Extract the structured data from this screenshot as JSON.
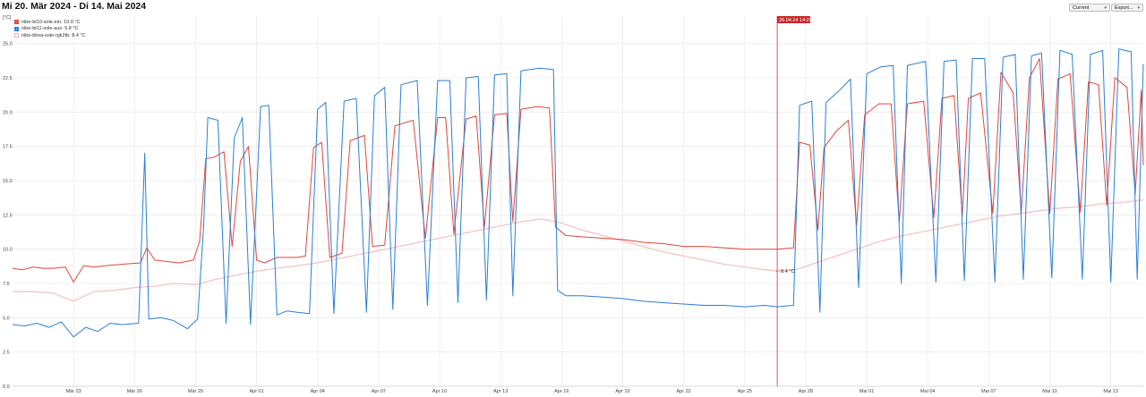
{
  "page": {
    "title": "Mi 20. Mär 2024 - Di 14. Mai 2024",
    "controls": {
      "current_label": "Current",
      "export_label": "Export..."
    }
  },
  "colors": {
    "sole_ein": "#e0463a",
    "sole_aus": "#2a7fd4",
    "rgk2tb": "#f3c4c4",
    "marker": "#e0463a",
    "grid": "#ececec"
  },
  "chart_data": {
    "type": "line",
    "ylabel": "[°C]",
    "ylim": [
      0,
      27
    ],
    "y_ticks": [
      "0.0",
      "2.5",
      "5.0",
      "7.5",
      "10.0",
      "12.5",
      "15.0",
      "17.5",
      "20.0",
      "22.5",
      "25.0"
    ],
    "x_ticks": [
      {
        "label": "Mär 23",
        "day": 3
      },
      {
        "label": "Mär 26",
        "day": 6
      },
      {
        "label": "Mär 29",
        "day": 9
      },
      {
        "label": "Apr 01",
        "day": 12
      },
      {
        "label": "Apr 04",
        "day": 15
      },
      {
        "label": "Apr 07",
        "day": 18
      },
      {
        "label": "Apr 10",
        "day": 21
      },
      {
        "label": "Apr 13",
        "day": 24
      },
      {
        "label": "Apr 16",
        "day": 27
      },
      {
        "label": "Apr 19",
        "day": 30
      },
      {
        "label": "Apr 22",
        "day": 33
      },
      {
        "label": "Apr 25",
        "day": 36
      },
      {
        "label": "Apr 28",
        "day": 39
      },
      {
        "label": "Mai 01",
        "day": 42
      },
      {
        "label": "Mai 04",
        "day": 45
      },
      {
        "label": "Mai 07",
        "day": 48
      },
      {
        "label": "Mai 10",
        "day": 51
      },
      {
        "label": "Mai 13",
        "day": 54
      }
    ],
    "xlim_days": [
      0,
      55.6
    ],
    "marker": {
      "label": "26.04.24 14:29",
      "day": 37.6,
      "value_label": "8.4 °C",
      "value": 8.4
    },
    "series": [
      {
        "name": "nibe-bt10-sole-ein",
        "legend": "nibe-bt10-sole-ein: 10.0 °C",
        "color": "#e0463a",
        "points": [
          [
            0,
            8.6
          ],
          [
            0.5,
            8.5
          ],
          [
            1,
            8.7
          ],
          [
            1.5,
            8.6
          ],
          [
            2,
            8.6
          ],
          [
            2.6,
            8.7
          ],
          [
            3,
            7.6
          ],
          [
            3.5,
            8.8
          ],
          [
            4,
            8.7
          ],
          [
            4.6,
            8.8
          ],
          [
            5.4,
            8.9
          ],
          [
            6.3,
            9.0
          ],
          [
            6.6,
            10.1
          ],
          [
            7,
            9.2
          ],
          [
            7.6,
            9.1
          ],
          [
            8.2,
            9.0
          ],
          [
            8.9,
            9.2
          ],
          [
            9.2,
            10.6
          ],
          [
            9.5,
            16.6
          ],
          [
            9.9,
            16.7
          ],
          [
            10.4,
            17.1
          ],
          [
            10.8,
            10.2
          ],
          [
            11.2,
            16.4
          ],
          [
            11.6,
            17.5
          ],
          [
            12,
            9.2
          ],
          [
            12.4,
            9.0
          ],
          [
            13,
            9.4
          ],
          [
            13.5,
            9.4
          ],
          [
            14,
            9.4
          ],
          [
            14.4,
            9.5
          ],
          [
            14.8,
            17.4
          ],
          [
            15.2,
            17.8
          ],
          [
            15.6,
            9.4
          ],
          [
            16.2,
            9.7
          ],
          [
            16.6,
            17.9
          ],
          [
            17.3,
            18.3
          ],
          [
            17.7,
            10.2
          ],
          [
            18.3,
            10.3
          ],
          [
            18.8,
            19.0
          ],
          [
            19.7,
            19.4
          ],
          [
            20.3,
            10.8
          ],
          [
            20.9,
            19.6
          ],
          [
            21.3,
            19.6
          ],
          [
            21.7,
            11.1
          ],
          [
            22.3,
            19.5
          ],
          [
            22.8,
            19.7
          ],
          [
            23.2,
            11.6
          ],
          [
            23.7,
            19.8
          ],
          [
            24.3,
            19.9
          ],
          [
            24.6,
            12.0
          ],
          [
            25,
            20.2
          ],
          [
            25.8,
            20.4
          ],
          [
            26.4,
            20.3
          ],
          [
            26.7,
            11.6
          ],
          [
            27.2,
            11.0
          ],
          [
            28,
            10.9
          ],
          [
            29,
            10.8
          ],
          [
            30,
            10.7
          ],
          [
            31,
            10.5
          ],
          [
            32,
            10.4
          ],
          [
            33,
            10.2
          ],
          [
            34,
            10.2
          ],
          [
            35,
            10.1
          ],
          [
            36,
            10.0
          ],
          [
            37,
            10.0
          ],
          [
            37.6,
            10.0
          ],
          [
            38.4,
            10.1
          ],
          [
            38.7,
            17.8
          ],
          [
            39.2,
            17.6
          ],
          [
            39.6,
            11.4
          ],
          [
            39.9,
            17.4
          ],
          [
            40.5,
            18.6
          ],
          [
            41.1,
            19.4
          ],
          [
            41.5,
            11.7
          ],
          [
            41.9,
            19.8
          ],
          [
            42.6,
            20.6
          ],
          [
            43.2,
            20.6
          ],
          [
            43.6,
            12.0
          ],
          [
            44,
            20.6
          ],
          [
            44.8,
            20.8
          ],
          [
            45.3,
            12.3
          ],
          [
            45.7,
            21.0
          ],
          [
            46.3,
            21.2
          ],
          [
            46.7,
            12.4
          ],
          [
            47,
            21.0
          ],
          [
            47.6,
            21.4
          ],
          [
            48.2,
            12.6
          ],
          [
            48.6,
            22.9
          ],
          [
            49.2,
            21.4
          ],
          [
            49.6,
            12.7
          ],
          [
            50,
            22.5
          ],
          [
            50.5,
            23.9
          ],
          [
            51,
            12.6
          ],
          [
            51.4,
            22.4
          ],
          [
            52,
            22.8
          ],
          [
            52.5,
            12.7
          ],
          [
            52.9,
            22.2
          ],
          [
            53.4,
            22.0
          ],
          [
            53.8,
            13.2
          ],
          [
            54.2,
            22.5
          ],
          [
            54.8,
            21.8
          ],
          [
            55.2,
            14.0
          ],
          [
            55.5,
            21.6
          ],
          [
            55.6,
            16.1
          ]
        ]
      },
      {
        "name": "nibe-bt11-sole-aus",
        "legend": "nibe-bt11-sole-aus: 5.8 °C",
        "color": "#2a7fd4",
        "points": [
          [
            0,
            4.5
          ],
          [
            0.6,
            4.4
          ],
          [
            1.2,
            4.6
          ],
          [
            1.8,
            4.3
          ],
          [
            2.4,
            4.7
          ],
          [
            3,
            3.6
          ],
          [
            3.6,
            4.3
          ],
          [
            4.2,
            4.0
          ],
          [
            4.8,
            4.6
          ],
          [
            5.4,
            4.5
          ],
          [
            6.2,
            4.6
          ],
          [
            6.5,
            17.0
          ],
          [
            6.7,
            4.9
          ],
          [
            7.3,
            5.0
          ],
          [
            7.9,
            4.8
          ],
          [
            8.6,
            4.2
          ],
          [
            9.1,
            4.9
          ],
          [
            9.4,
            11.7
          ],
          [
            9.6,
            19.6
          ],
          [
            10.1,
            19.4
          ],
          [
            10.5,
            4.6
          ],
          [
            10.9,
            18.1
          ],
          [
            11.3,
            19.6
          ],
          [
            11.7,
            4.5
          ],
          [
            12.2,
            20.4
          ],
          [
            12.6,
            20.5
          ],
          [
            13.0,
            5.2
          ],
          [
            13.5,
            5.5
          ],
          [
            14,
            5.4
          ],
          [
            14.6,
            5.3
          ],
          [
            15,
            20.2
          ],
          [
            15.4,
            20.7
          ],
          [
            15.8,
            5.3
          ],
          [
            16.3,
            20.8
          ],
          [
            16.9,
            21.0
          ],
          [
            17.4,
            5.4
          ],
          [
            17.8,
            21.2
          ],
          [
            18.3,
            21.8
          ],
          [
            18.7,
            5.6
          ],
          [
            19.1,
            22.0
          ],
          [
            19.9,
            22.3
          ],
          [
            20.4,
            5.9
          ],
          [
            20.9,
            22.3
          ],
          [
            21.5,
            22.3
          ],
          [
            21.9,
            6.1
          ],
          [
            22.3,
            22.5
          ],
          [
            22.9,
            22.6
          ],
          [
            23.3,
            6.3
          ],
          [
            23.7,
            22.7
          ],
          [
            24.3,
            22.8
          ],
          [
            24.6,
            6.6
          ],
          [
            25,
            23.0
          ],
          [
            25.9,
            23.2
          ],
          [
            26.6,
            23.1
          ],
          [
            26.8,
            7.0
          ],
          [
            27.2,
            6.6
          ],
          [
            28,
            6.6
          ],
          [
            29,
            6.5
          ],
          [
            30,
            6.4
          ],
          [
            31,
            6.2
          ],
          [
            32,
            6.1
          ],
          [
            33,
            6.0
          ],
          [
            34,
            5.9
          ],
          [
            35,
            5.9
          ],
          [
            36,
            5.8
          ],
          [
            37,
            5.9
          ],
          [
            37.6,
            5.8
          ],
          [
            38.4,
            5.9
          ],
          [
            38.7,
            20.5
          ],
          [
            39.3,
            20.8
          ],
          [
            39.7,
            5.4
          ],
          [
            40,
            20.7
          ],
          [
            40.6,
            21.5
          ],
          [
            41.2,
            22.4
          ],
          [
            41.6,
            7.2
          ],
          [
            42,
            22.8
          ],
          [
            42.7,
            23.3
          ],
          [
            43.3,
            23.4
          ],
          [
            43.7,
            7.5
          ],
          [
            44,
            23.4
          ],
          [
            44.9,
            23.7
          ],
          [
            45.4,
            7.6
          ],
          [
            45.8,
            23.7
          ],
          [
            46.4,
            23.8
          ],
          [
            46.8,
            7.7
          ],
          [
            47.2,
            23.9
          ],
          [
            47.8,
            23.9
          ],
          [
            48.3,
            7.6
          ],
          [
            48.7,
            24.0
          ],
          [
            49.3,
            24.2
          ],
          [
            49.7,
            7.8
          ],
          [
            50.1,
            24.1
          ],
          [
            50.6,
            24.3
          ],
          [
            51.1,
            7.9
          ],
          [
            51.5,
            24.5
          ],
          [
            52.1,
            24.2
          ],
          [
            52.6,
            7.8
          ],
          [
            53,
            24.2
          ],
          [
            53.6,
            24.5
          ],
          [
            54,
            7.6
          ],
          [
            54.4,
            24.6
          ],
          [
            55,
            24.4
          ],
          [
            55.3,
            7.8
          ],
          [
            55.6,
            23.5
          ]
        ]
      },
      {
        "name": "nibe-bbxa-sole-rgk2tb",
        "legend": "nibe-bbxa-sole-rgk2tb: 8.4 °C",
        "color": "#f3c4c4",
        "points": [
          [
            0,
            6.9
          ],
          [
            1,
            6.9
          ],
          [
            2,
            6.8
          ],
          [
            3,
            6.2
          ],
          [
            4,
            6.9
          ],
          [
            5,
            7.0
          ],
          [
            6,
            7.2
          ],
          [
            7,
            7.3
          ],
          [
            8,
            7.5
          ],
          [
            9,
            7.4
          ],
          [
            10,
            7.8
          ],
          [
            11,
            8.1
          ],
          [
            12,
            8.4
          ],
          [
            13,
            8.6
          ],
          [
            14,
            8.8
          ],
          [
            15,
            9.0
          ],
          [
            16,
            9.3
          ],
          [
            17,
            9.6
          ],
          [
            18,
            9.9
          ],
          [
            19,
            10.2
          ],
          [
            20,
            10.5
          ],
          [
            21,
            10.8
          ],
          [
            22,
            11.1
          ],
          [
            23,
            11.4
          ],
          [
            24,
            11.7
          ],
          [
            25,
            12.0
          ],
          [
            26,
            12.2
          ],
          [
            27,
            11.9
          ],
          [
            28,
            11.4
          ],
          [
            29,
            11.0
          ],
          [
            30,
            10.6
          ],
          [
            31,
            10.2
          ],
          [
            32,
            9.8
          ],
          [
            33,
            9.5
          ],
          [
            34,
            9.2
          ],
          [
            35,
            8.9
          ],
          [
            36,
            8.7
          ],
          [
            37,
            8.5
          ],
          [
            37.6,
            8.4
          ],
          [
            38.5,
            8.5
          ],
          [
            39.5,
            9.0
          ],
          [
            40.5,
            9.5
          ],
          [
            41.5,
            10.0
          ],
          [
            42.5,
            10.5
          ],
          [
            43.5,
            10.9
          ],
          [
            44.5,
            11.2
          ],
          [
            45.5,
            11.5
          ],
          [
            46.5,
            11.8
          ],
          [
            47.5,
            12.1
          ],
          [
            48.5,
            12.4
          ],
          [
            49.5,
            12.6
          ],
          [
            50.5,
            12.8
          ],
          [
            51.5,
            13.0
          ],
          [
            52.5,
            13.1
          ],
          [
            53.5,
            13.3
          ],
          [
            54.5,
            13.4
          ],
          [
            55.6,
            13.6
          ]
        ]
      }
    ]
  }
}
